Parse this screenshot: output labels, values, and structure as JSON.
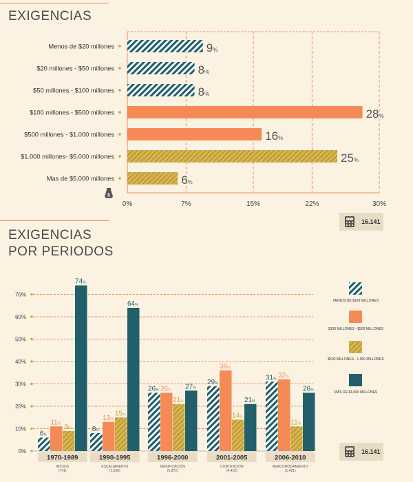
{
  "colors": {
    "teal": "#21606a",
    "orange": "#f48a55",
    "gold": "#c8a53a",
    "grid": "#f08a52",
    "label": "#444444"
  },
  "chart1_section": {
    "title": "EXIGENCIAS",
    "badge_value": "16.141",
    "badge_icon": "calculator-icon",
    "axis_icon": "money-bag-icon"
  },
  "chart2_section": {
    "title_line1": "EXIGENCIAS",
    "title_line2": "POR PERIODOS",
    "badge_value": "16.141",
    "badge_icon": "calculator-icon"
  },
  "chart_data": [
    {
      "type": "bar",
      "orientation": "horizontal",
      "categories": [
        "Menos de $20 millones",
        "$20 millones - $50 millones",
        "$50 millones - $100 millones",
        "$100 millones - $500 millones",
        "$500 millones - $1.000 millones",
        "$1.000 millones- $5.000 millones",
        "Mas de $5.000 millones"
      ],
      "values": [
        9,
        8,
        8,
        28,
        16,
        25,
        6
      ],
      "value_labels": [
        "9",
        "8",
        "8",
        "28",
        "16",
        "25",
        "6"
      ],
      "value_suffix": "%",
      "bar_styles": [
        "teal-hatch",
        "teal-hatch",
        "teal-hatch",
        "orange",
        "orange",
        "gold-hatch",
        "gold-hatch"
      ],
      "xticks": [
        0,
        7,
        15,
        22,
        30
      ],
      "xtick_labels": [
        "0%",
        "7%",
        "15%",
        "22%",
        "30%"
      ],
      "xlim": [
        0,
        30
      ],
      "grid": "vertical-dashed"
    },
    {
      "type": "bar",
      "orientation": "vertical-grouped",
      "categories": [
        "1970-1989",
        "1990-1995",
        "1996-2000",
        "2001-2005",
        "2006-2010"
      ],
      "category_sublabels": [
        "INICIOS",
        "ESCALAMIENTO",
        "MASIFICACIÓN",
        "CONTENCIÓN",
        "REACOMODAMIENTO"
      ],
      "category_counts": [
        "(741)",
        "(1.656)",
        "(5.872)",
        "(4.422)",
        "(1.421)"
      ],
      "series": [
        {
          "name": "MENOS DE $100 MILLONES",
          "style": "teal-hatch",
          "values": [
            6,
            8,
            26,
            29,
            31
          ]
        },
        {
          "name": "$100 MILLONES - $500 MILLONES",
          "style": "orange",
          "values": [
            11,
            13,
            26,
            36,
            32
          ]
        },
        {
          "name": "$500 MILLONES - 1.000 MILLONES",
          "style": "gold-hatch",
          "values": [
            9,
            15,
            21,
            14,
            11
          ]
        },
        {
          "name": "MÁS DE $1,000 MILLONES",
          "style": "teal",
          "values": [
            74,
            64,
            27,
            21,
            26
          ]
        }
      ],
      "value_suffix": "%",
      "yticks": [
        0,
        10,
        20,
        30,
        40,
        50,
        60,
        70
      ],
      "ytick_labels": [
        "0%",
        "10%",
        "20%",
        "30%",
        "40%",
        "50%",
        "60%",
        "70%"
      ],
      "ylim": [
        0,
        76
      ],
      "grid": "horizontal-dashed",
      "legend": "right"
    }
  ]
}
